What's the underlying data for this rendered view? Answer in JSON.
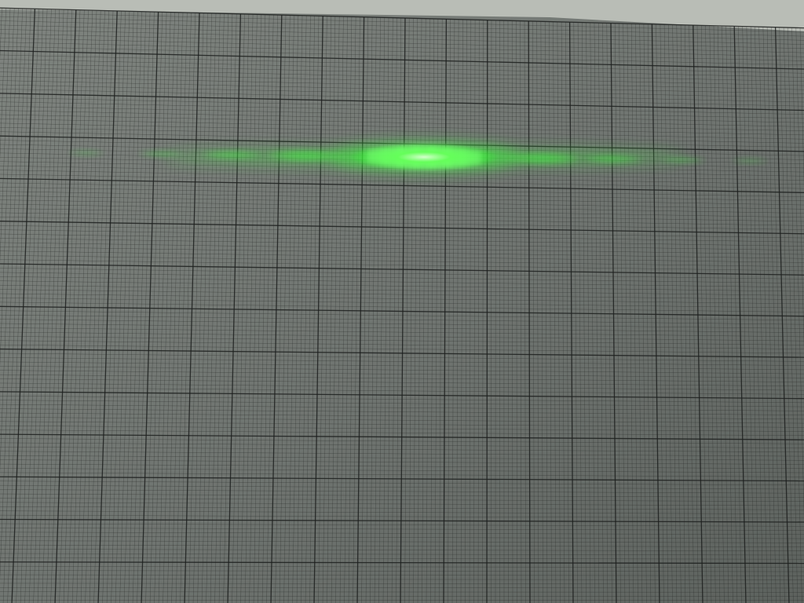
{
  "photo": {
    "subject": "laser-diffraction-pattern-on-graph-paper",
    "colors": {
      "paper": "#6f7470",
      "paper_shadow": "#5d625e",
      "paper_highlight": "#7f847f",
      "top_edge": "#b9bdb6",
      "grid_line": "#1c1f1d",
      "laser": "#3dff3a",
      "laser_core": "#b8ffb0"
    }
  }
}
